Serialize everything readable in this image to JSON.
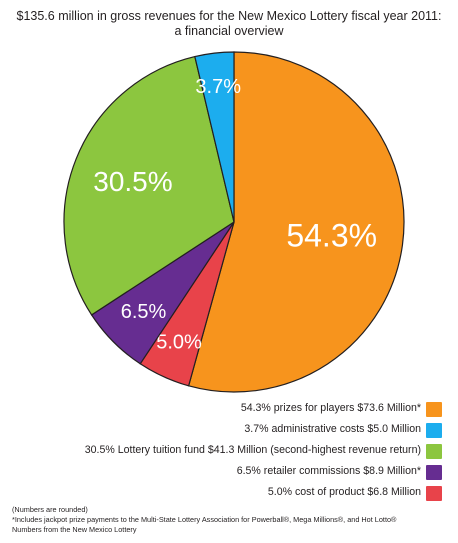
{
  "title_line1": "$135.6 million in gross revenues for the New Mexico Lottery fiscal year 2011:",
  "title_line2": "a financial overview",
  "chart_data": {
    "type": "pie",
    "title": "$135.6 million in gross revenues for the New Mexico Lottery fiscal year 2011: a financial overview",
    "start_angle_deg": 0,
    "direction": "clockwise",
    "slices": [
      {
        "label": "54.3%",
        "value": 54.3,
        "color": "#f7941d",
        "legend": "54.3% prizes for players $73.6 Million*"
      },
      {
        "label": "5.0%",
        "value": 5.0,
        "color": "#e8434a",
        "legend": "5.0% cost of product $6.8 Million"
      },
      {
        "label": "6.5%",
        "value": 6.5,
        "color": "#662d91",
        "legend": "6.5% retailer commissions $8.9 Million*"
      },
      {
        "label": "30.5%",
        "value": 30.5,
        "color": "#8cc63f",
        "legend": "30.5% Lottery tuition fund $41.3 Million (second-highest revenue return)"
      },
      {
        "label": "3.7%",
        "value": 3.7,
        "color": "#1cadee",
        "legend": "3.7% administrative costs $5.0 Million"
      }
    ],
    "legend_order": [
      0,
      4,
      3,
      2,
      1
    ],
    "legend_placement": "bottom-right"
  },
  "notes": [
    "(Numbers are rounded)",
    "*Includes jackpot prize payments to the Multi-State Lottery Association for Powerball®, Mega Millions®, and Hot Lotto®",
    "Numbers from the New Mexico Lottery"
  ]
}
